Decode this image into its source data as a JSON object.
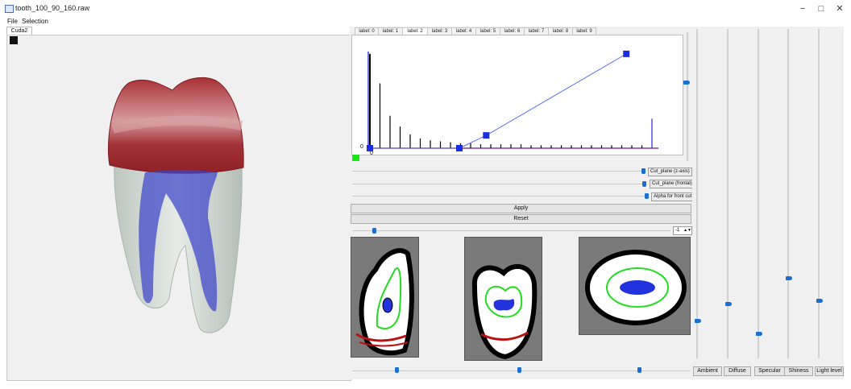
{
  "window": {
    "title": "tooth_100_90_160.raw",
    "controls": [
      "−",
      "□",
      "✕"
    ]
  },
  "menu": [
    "File",
    "Selection"
  ],
  "render_tab": "Cuda2",
  "label_tabs": [
    "label: 0",
    "label: 1",
    "label: 2",
    "label: 3",
    "label: 4",
    "label: 5",
    "label: 6",
    "label: 7",
    "label: 8",
    "label: 9"
  ],
  "active_label_tab": 2,
  "chart_data": {
    "type": "bar",
    "note_axis_labels": [
      "0",
      "0"
    ],
    "histogram": [
      0.96,
      0.66,
      0.33,
      0.22,
      0.14,
      0.1,
      0.08,
      0.07,
      0.06,
      0.05,
      0.05,
      0.04,
      0.04,
      0.04,
      0.04,
      0.04,
      0.03,
      0.03,
      0.03,
      0.03,
      0.03,
      0.03,
      0.03,
      0.03,
      0.03,
      0.03,
      0.03,
      0.03,
      0.3
    ],
    "transfer_points": [
      [
        0,
        0
      ],
      [
        0.3,
        0
      ],
      [
        0.39,
        0.13
      ],
      [
        0.86,
        0.96
      ]
    ],
    "color_swatch": "#19e619"
  },
  "controls": {
    "cut_z": "Cut_plane (z-axis)",
    "cut_frontal": "Cut_plane (frontal)",
    "alpha_front": "Alpha for front cut",
    "apply": "Apply",
    "reset": "Reset",
    "spin_value": "-1",
    "spin_arrows": "▲▼"
  },
  "lighting": {
    "buttons": [
      "Ambient",
      "Diffuse",
      "Specular",
      "Shiness",
      "Light level"
    ],
    "levels": [
      0.12,
      0.17,
      0.08,
      0.25,
      0.18
    ]
  },
  "colors": {
    "accent": "#1a6fd0",
    "curve": "#5b6df0",
    "crown": "#a83035",
    "pulp": "#3a44c8",
    "contour_green": "#22dd22",
    "contour_red": "#bb1111"
  }
}
